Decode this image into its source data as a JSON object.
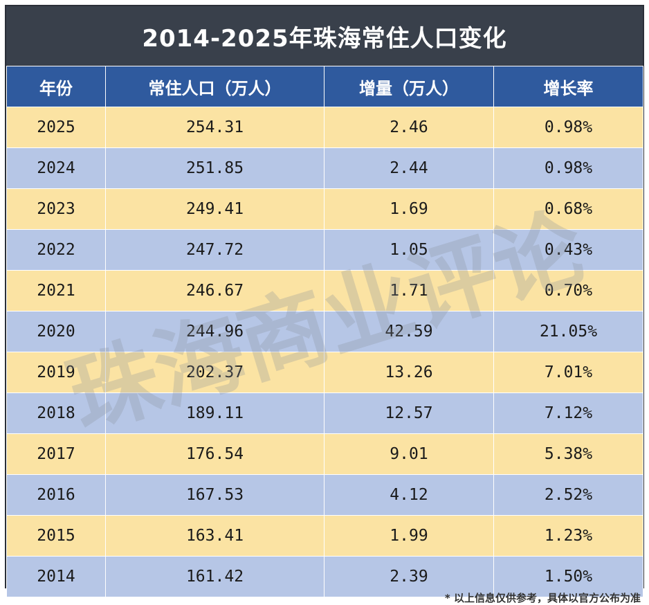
{
  "chart_data": {
    "type": "table",
    "title": "2014-2025年珠海常住人口变化",
    "columns": [
      "年份",
      "常住人口（万人）",
      "增量（万人）",
      "增长率"
    ],
    "rows": [
      [
        "2025",
        "254.31",
        "2.46",
        "0.98%"
      ],
      [
        "2024",
        "251.85",
        "2.44",
        "0.98%"
      ],
      [
        "2023",
        "249.41",
        "1.69",
        "0.68%"
      ],
      [
        "2022",
        "247.72",
        "1.05",
        "0.43%"
      ],
      [
        "2021",
        "246.67",
        "1.71",
        "0.70%"
      ],
      [
        "2020",
        "244.96",
        "42.59",
        "21.05%"
      ],
      [
        "2019",
        "202.37",
        "13.26",
        "7.01%"
      ],
      [
        "2018",
        "189.11",
        "12.57",
        "7.12%"
      ],
      [
        "2017",
        "176.54",
        "9.01",
        "5.38%"
      ],
      [
        "2016",
        "167.53",
        "4.12",
        "2.52%"
      ],
      [
        "2015",
        "163.41",
        "1.99",
        "1.23%"
      ],
      [
        "2014",
        "161.42",
        "2.39",
        "1.50%"
      ]
    ]
  },
  "watermark": "珠海商业评论",
  "footnote": "* 以上信息仅供参考，具体以官方公布为准",
  "colors": {
    "title_bg": "#39404b",
    "header_bg": "#2f5a9e",
    "row_yellow": "#fbe3a3",
    "row_blue": "#b6c6e6"
  }
}
